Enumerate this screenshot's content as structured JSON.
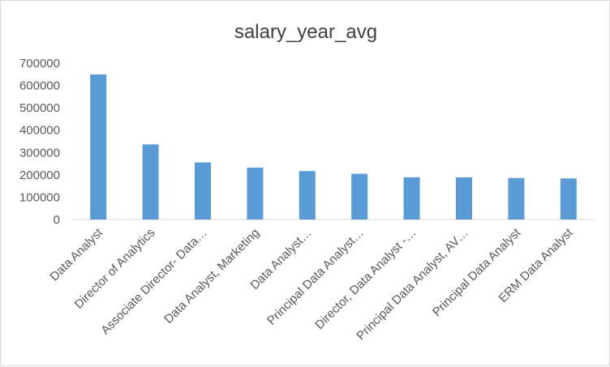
{
  "chart_data": {
    "type": "bar",
    "title": "salary_year_avg",
    "xlabel": "",
    "ylabel": "",
    "categories": [
      "Data Analyst",
      "Director of Analytics",
      "Associate Director- Data…",
      "Data Analyst, Marketing",
      "Data Analyst…",
      "Principal Data Analyst…",
      "Director, Data Analyst -…",
      "Principal Data Analyst, AV…",
      "Principal Data Analyst",
      "ERM Data Analyst"
    ],
    "values": [
      650000,
      336500,
      255829.5,
      232423,
      217000,
      205000,
      189309,
      189000,
      186000,
      184000
    ],
    "ylim": [
      0,
      700000
    ],
    "yticks": [
      "0",
      "100000",
      "200000",
      "300000",
      "400000",
      "500000",
      "600000",
      "700000"
    ],
    "grid": false,
    "legend": "none",
    "bar_color": "#5b9bd5",
    "axis_color": "#d9d9d9"
  }
}
